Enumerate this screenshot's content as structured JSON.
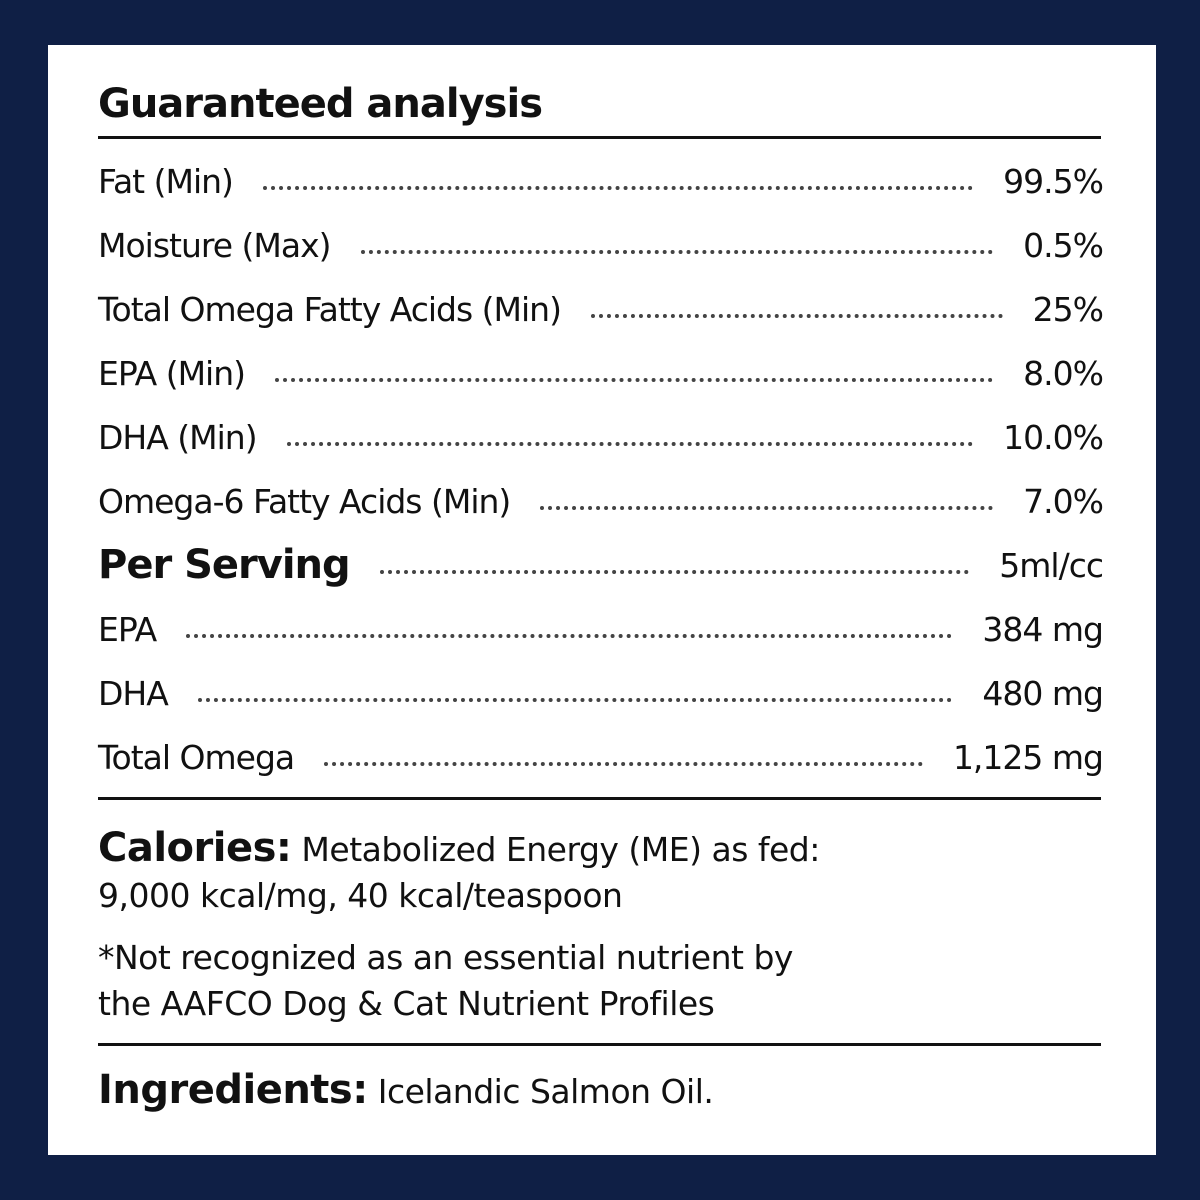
{
  "title": "Guaranteed analysis",
  "analysis": [
    [
      "Fat (Min)",
      "99.5%"
    ],
    [
      "Moisture (Max)",
      "0.5%"
    ],
    [
      "Total Omega Fatty Acids (Min)",
      "25%"
    ],
    [
      "EPA (Min)",
      "8.0%"
    ],
    [
      "DHA (Min)",
      "10.0%"
    ],
    [
      "Omega-6 Fatty Acids (Min)",
      "7.0%"
    ]
  ],
  "serving": {
    "label": "Per Serving",
    "value": "5ml/cc"
  },
  "serving_rows": [
    [
      "EPA",
      "384 mg"
    ],
    [
      "DHA",
      "480 mg"
    ],
    [
      "Total Omega",
      "1,125 mg"
    ]
  ],
  "calories": {
    "label": "Calories:",
    "line1": "Metabolized Energy (ME) as fed:",
    "line2": "9,000 kcal/mg, 40 kcal/teaspoon"
  },
  "note": {
    "line1": "*Not recognized as an essential nutrient by",
    "line2": "the AAFCO Dog & Cat Nutrient Profiles"
  },
  "ingredients": {
    "label": "Ingredients:",
    "text": "Icelandic Salmon Oil."
  }
}
